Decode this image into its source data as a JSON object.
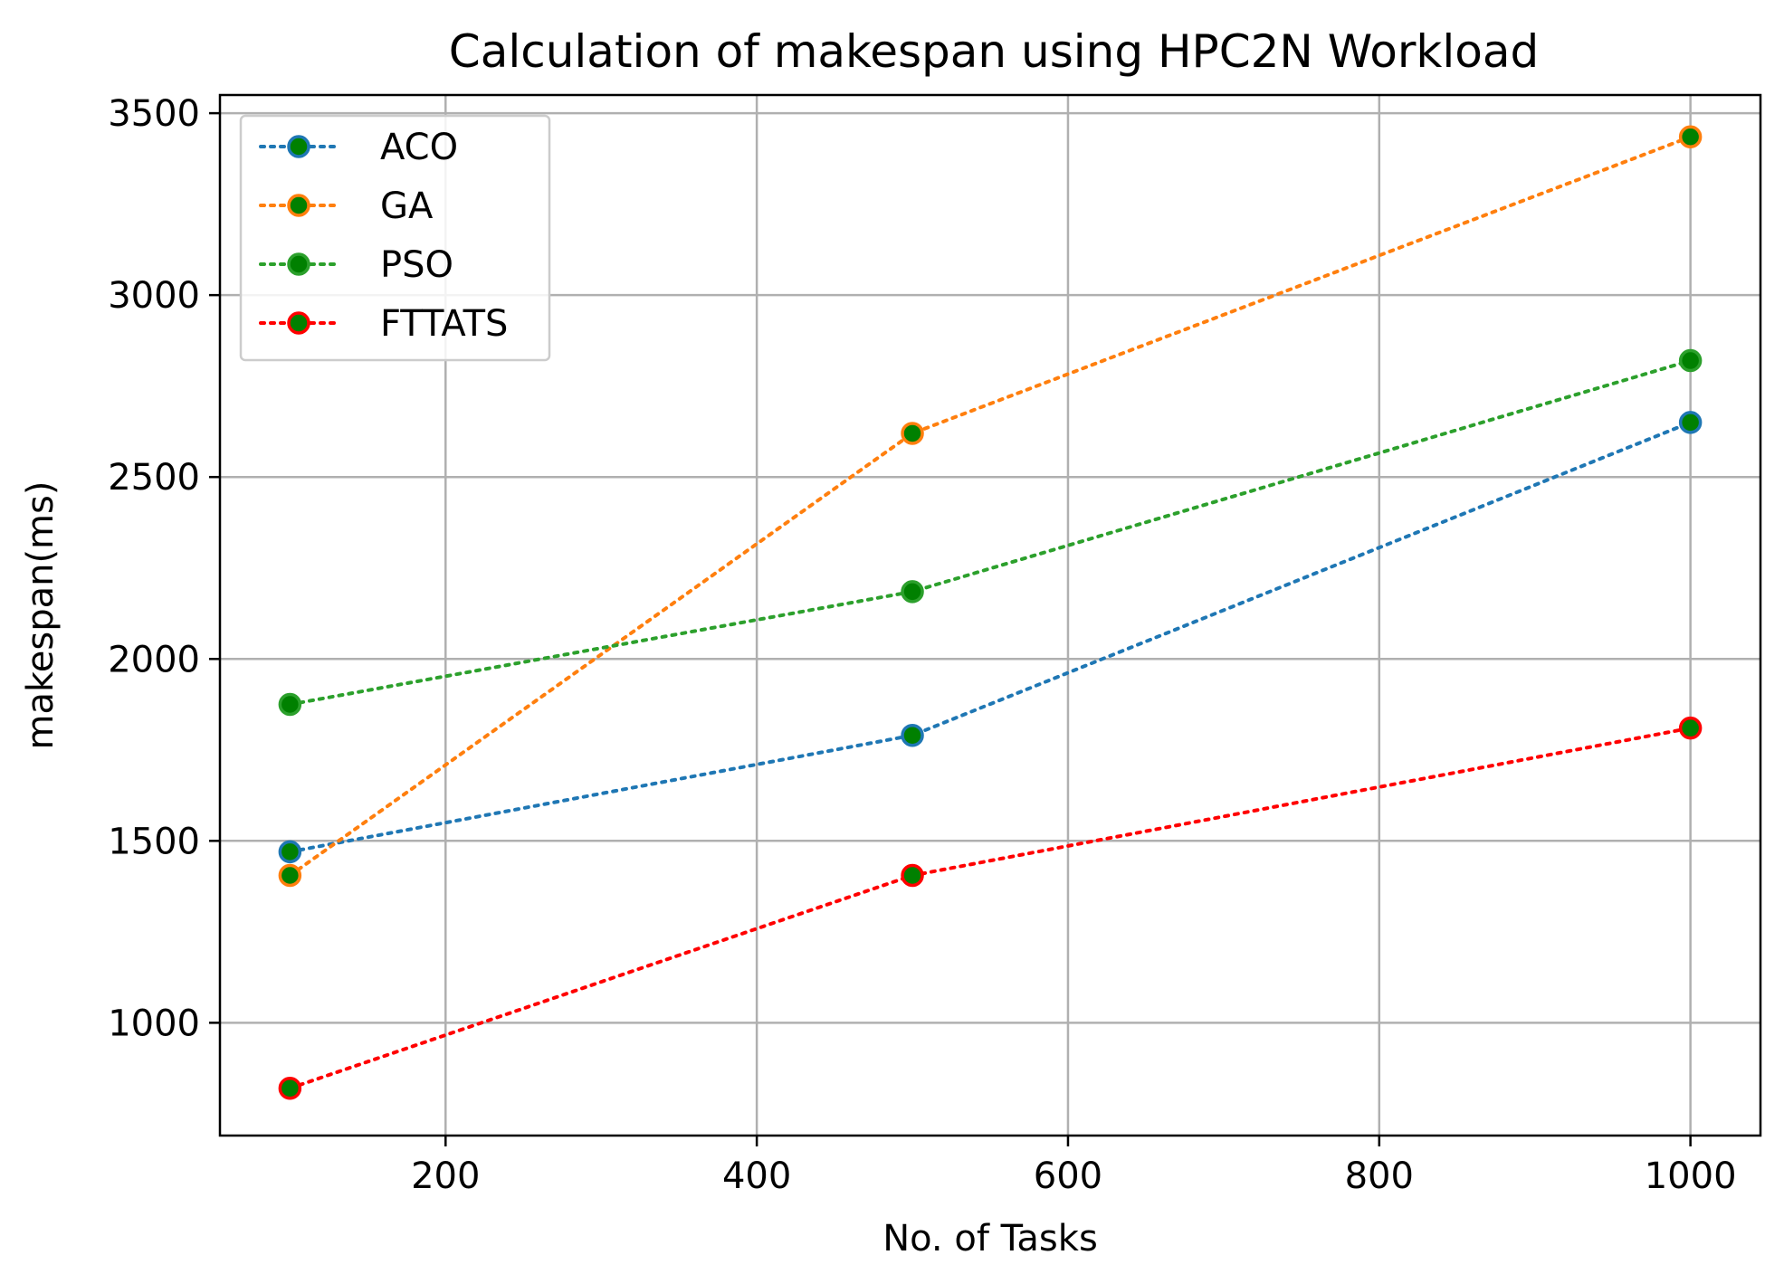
{
  "chart_data": {
    "type": "line",
    "title": "Calculation of makespan using HPC2N Workload",
    "xlabel": "No. of Tasks",
    "ylabel": "makespan(ms)",
    "x": [
      100,
      500,
      1000
    ],
    "xlim": [
      55,
      1045
    ],
    "ylim": [
      690,
      3550
    ],
    "xticks": [
      200,
      400,
      600,
      800,
      1000
    ],
    "yticks": [
      1000,
      1500,
      2000,
      2500,
      3000,
      3500
    ],
    "grid": true,
    "legend_position": "top-left",
    "marker_fill": "#008000",
    "series": [
      {
        "name": "ACO",
        "values": [
          1470,
          1790,
          2650
        ],
        "color": "#1f77b4"
      },
      {
        "name": "GA",
        "values": [
          1405,
          2620,
          3435
        ],
        "color": "#ff7f0e"
      },
      {
        "name": "PSO",
        "values": [
          1875,
          2185,
          2820
        ],
        "color": "#2ca02c"
      },
      {
        "name": "FTTATS",
        "values": [
          820,
          1405,
          1810
        ],
        "color": "#ff0000"
      }
    ]
  }
}
